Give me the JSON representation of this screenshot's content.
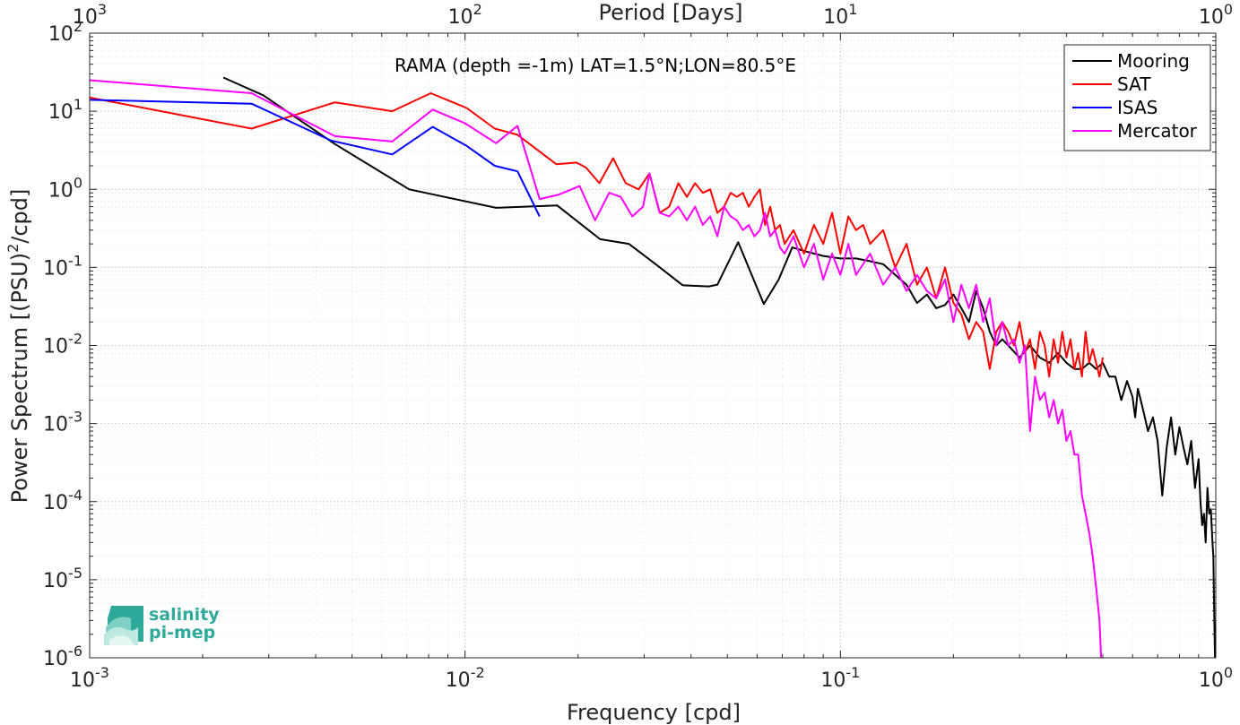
{
  "chart_data": {
    "type": "line",
    "title": "RAMA (depth =-1m) LAT=1.5°N;LON=80.5°E",
    "xlabel": "Frequency [cpd]",
    "ylabel": "Power Spectrum [(PSU)²/cpd]",
    "top_xlabel": "Period [Days]",
    "xscale": "log",
    "yscale": "log",
    "xlim": [
      0.001,
      1
    ],
    "ylim": [
      1e-06,
      100
    ],
    "grid": true,
    "legend_position": "top-right",
    "x_ticks": [
      {
        "value": 0.001,
        "base": "10",
        "exp": "-3"
      },
      {
        "value": 0.01,
        "base": "10",
        "exp": "-2"
      },
      {
        "value": 0.1,
        "base": "10",
        "exp": "-1"
      },
      {
        "value": 1,
        "base": "10",
        "exp": "0"
      }
    ],
    "top_ticks": [
      {
        "value": 0.001,
        "base": "10",
        "exp": "3"
      },
      {
        "value": 0.01,
        "base": "10",
        "exp": "2"
      },
      {
        "value": 0.1,
        "base": "10",
        "exp": "1"
      },
      {
        "value": 1,
        "base": "10",
        "exp": "0"
      }
    ],
    "y_ticks": [
      {
        "value": 100,
        "base": "10",
        "exp": "2"
      },
      {
        "value": 10,
        "base": "10",
        "exp": "1"
      },
      {
        "value": 1,
        "base": "10",
        "exp": "0"
      },
      {
        "value": 0.1,
        "base": "10",
        "exp": "-1"
      },
      {
        "value": 0.01,
        "base": "10",
        "exp": "-2"
      },
      {
        "value": 0.001,
        "base": "10",
        "exp": "-3"
      },
      {
        "value": 0.0001,
        "base": "10",
        "exp": "-4"
      },
      {
        "value": 1e-05,
        "base": "10",
        "exp": "-5"
      },
      {
        "value": 1e-06,
        "base": "10",
        "exp": "-6"
      }
    ],
    "series": [
      {
        "name": "Mooring",
        "color": "#000000",
        "points": [
          [
            0.00227,
            27
          ],
          [
            0.0029,
            16
          ],
          [
            0.0045,
            3.8
          ],
          [
            0.0071,
            1.0
          ],
          [
            0.0121,
            0.58
          ],
          [
            0.0176,
            0.62
          ],
          [
            0.0229,
            0.23
          ],
          [
            0.0273,
            0.2
          ],
          [
            0.0322,
            0.11
          ],
          [
            0.038,
            0.059
          ],
          [
            0.0446,
            0.057
          ],
          [
            0.047,
            0.06
          ],
          [
            0.0534,
            0.21
          ],
          [
            0.0587,
            0.07
          ],
          [
            0.0625,
            0.034
          ],
          [
            0.0685,
            0.07
          ],
          [
            0.0744,
            0.18
          ],
          [
            0.081,
            0.16
          ],
          [
            0.09,
            0.14
          ],
          [
            0.1,
            0.13
          ],
          [
            0.11,
            0.13
          ],
          [
            0.12,
            0.12
          ],
          [
            0.13,
            0.11
          ],
          [
            0.14,
            0.08
          ],
          [
            0.15,
            0.06
          ],
          [
            0.16,
            0.035
          ],
          [
            0.17,
            0.045
          ],
          [
            0.18,
            0.03
          ],
          [
            0.19,
            0.033
          ],
          [
            0.2,
            0.045
          ],
          [
            0.21,
            0.03
          ],
          [
            0.22,
            0.02
          ],
          [
            0.23,
            0.05
          ],
          [
            0.24,
            0.03
          ],
          [
            0.25,
            0.015
          ],
          [
            0.26,
            0.01
          ],
          [
            0.27,
            0.012
          ],
          [
            0.28,
            0.01
          ],
          [
            0.3,
            0.007
          ],
          [
            0.32,
            0.01
          ],
          [
            0.34,
            0.007
          ],
          [
            0.36,
            0.006
          ],
          [
            0.38,
            0.008
          ],
          [
            0.4,
            0.006
          ],
          [
            0.42,
            0.005
          ],
          [
            0.44,
            0.005
          ],
          [
            0.46,
            0.006
          ],
          [
            0.48,
            0.005
          ],
          [
            0.5,
            0.006
          ],
          [
            0.52,
            0.004
          ],
          [
            0.54,
            0.004
          ],
          [
            0.56,
            0.002
          ],
          [
            0.58,
            0.0035
          ],
          [
            0.6,
            0.0022
          ],
          [
            0.61,
            0.0012
          ],
          [
            0.62,
            0.0028
          ],
          [
            0.64,
            0.0015
          ],
          [
            0.66,
            0.0008
          ],
          [
            0.68,
            0.0012
          ],
          [
            0.7,
            0.0006
          ],
          [
            0.72,
            0.00012
          ],
          [
            0.74,
            0.0005
          ],
          [
            0.76,
            0.0012
          ],
          [
            0.78,
            0.0004
          ],
          [
            0.8,
            0.0009
          ],
          [
            0.82,
            0.0005
          ],
          [
            0.84,
            0.0003
          ],
          [
            0.86,
            0.0006
          ],
          [
            0.88,
            0.00015
          ],
          [
            0.9,
            0.00035
          ],
          [
            0.91,
            0.0001
          ],
          [
            0.92,
            5e-05
          ],
          [
            0.93,
            7e-05
          ],
          [
            0.94,
            3e-05
          ],
          [
            0.95,
            0.00015
          ],
          [
            0.96,
            7e-05
          ],
          [
            0.97,
            8e-05
          ],
          [
            0.98,
            3e-05
          ],
          [
            0.985,
            2e-05
          ],
          [
            0.99,
            4e-06
          ],
          [
            0.995,
            1e-06
          ]
        ]
      },
      {
        "name": "SAT",
        "color": "#ff0000",
        "points": [
          [
            0.001,
            15
          ],
          [
            0.0027,
            6
          ],
          [
            0.0045,
            13
          ],
          [
            0.0064,
            10
          ],
          [
            0.0081,
            17
          ],
          [
            0.0101,
            11
          ],
          [
            0.012,
            6
          ],
          [
            0.0138,
            5
          ],
          [
            0.0175,
            2.1
          ],
          [
            0.0198,
            2.2
          ],
          [
            0.021,
            1.9
          ],
          [
            0.0228,
            1.2
          ],
          [
            0.0248,
            2.5
          ],
          [
            0.0268,
            1.2
          ],
          [
            0.029,
            1.0
          ],
          [
            0.031,
            1.6
          ],
          [
            0.033,
            0.5
          ],
          [
            0.035,
            0.6
          ],
          [
            0.037,
            1.2
          ],
          [
            0.039,
            0.8
          ],
          [
            0.041,
            1.2
          ],
          [
            0.043,
            0.9
          ],
          [
            0.045,
            1.0
          ],
          [
            0.047,
            0.5
          ],
          [
            0.049,
            0.6
          ],
          [
            0.051,
            0.9
          ],
          [
            0.053,
            0.8
          ],
          [
            0.055,
            0.9
          ],
          [
            0.057,
            0.6
          ],
          [
            0.059,
            0.8
          ],
          [
            0.061,
            1.0
          ],
          [
            0.063,
            0.35
          ],
          [
            0.065,
            0.6
          ],
          [
            0.067,
            0.3
          ],
          [
            0.069,
            0.35
          ],
          [
            0.071,
            0.2
          ],
          [
            0.075,
            0.3
          ],
          [
            0.08,
            0.15
          ],
          [
            0.085,
            0.35
          ],
          [
            0.09,
            0.2
          ],
          [
            0.095,
            0.5
          ],
          [
            0.1,
            0.15
          ],
          [
            0.105,
            0.45
          ],
          [
            0.11,
            0.3
          ],
          [
            0.115,
            0.35
          ],
          [
            0.12,
            0.2
          ],
          [
            0.13,
            0.3
          ],
          [
            0.14,
            0.1
          ],
          [
            0.15,
            0.2
          ],
          [
            0.16,
            0.06
          ],
          [
            0.17,
            0.1
          ],
          [
            0.18,
            0.04
          ],
          [
            0.19,
            0.1
          ],
          [
            0.2,
            0.035
          ],
          [
            0.21,
            0.025
          ],
          [
            0.22,
            0.012
          ],
          [
            0.23,
            0.02
          ],
          [
            0.24,
            0.015
          ],
          [
            0.25,
            0.005
          ],
          [
            0.26,
            0.015
          ],
          [
            0.27,
            0.02
          ],
          [
            0.28,
            0.015
          ],
          [
            0.29,
            0.01
          ],
          [
            0.3,
            0.02
          ],
          [
            0.31,
            0.008
          ],
          [
            0.32,
            0.012
          ],
          [
            0.33,
            0.005
          ],
          [
            0.34,
            0.015
          ],
          [
            0.35,
            0.01
          ],
          [
            0.36,
            0.004
          ],
          [
            0.37,
            0.012
          ],
          [
            0.38,
            0.006
          ],
          [
            0.39,
            0.015
          ],
          [
            0.4,
            0.007
          ],
          [
            0.41,
            0.012
          ],
          [
            0.42,
            0.005
          ],
          [
            0.43,
            0.008
          ],
          [
            0.44,
            0.004
          ],
          [
            0.45,
            0.015
          ],
          [
            0.46,
            0.006
          ],
          [
            0.47,
            0.009
          ],
          [
            0.48,
            0.006
          ],
          [
            0.49,
            0.004
          ],
          [
            0.5,
            0.007
          ]
        ]
      },
      {
        "name": "ISAS",
        "color": "#0000ff",
        "points": [
          [
            0.001,
            14
          ],
          [
            0.0027,
            12.5
          ],
          [
            0.0044,
            4.2
          ],
          [
            0.0064,
            2.8
          ],
          [
            0.0082,
            6.3
          ],
          [
            0.0101,
            3.6
          ],
          [
            0.012,
            2.0
          ],
          [
            0.0138,
            1.7
          ],
          [
            0.0158,
            0.45
          ]
        ]
      },
      {
        "name": "Mercator",
        "color": "#ff00ff",
        "points": [
          [
            0.001,
            25
          ],
          [
            0.0027,
            17
          ],
          [
            0.0045,
            4.8
          ],
          [
            0.0064,
            4.1
          ],
          [
            0.0082,
            10.5
          ],
          [
            0.01,
            7.0
          ],
          [
            0.0121,
            3.9
          ],
          [
            0.0138,
            6.5
          ],
          [
            0.0158,
            0.75
          ],
          [
            0.0177,
            0.85
          ],
          [
            0.0202,
            1.1
          ],
          [
            0.0222,
            0.4
          ],
          [
            0.0242,
            0.9
          ],
          [
            0.026,
            0.8
          ],
          [
            0.0279,
            0.45
          ],
          [
            0.0298,
            0.6
          ],
          [
            0.031,
            1.6
          ],
          [
            0.033,
            0.5
          ],
          [
            0.035,
            0.45
          ],
          [
            0.037,
            0.6
          ],
          [
            0.039,
            0.4
          ],
          [
            0.041,
            0.6
          ],
          [
            0.043,
            0.35
          ],
          [
            0.045,
            0.45
          ],
          [
            0.047,
            0.25
          ],
          [
            0.049,
            0.6
          ],
          [
            0.051,
            0.45
          ],
          [
            0.053,
            0.4
          ],
          [
            0.055,
            0.3
          ],
          [
            0.057,
            0.35
          ],
          [
            0.059,
            0.25
          ],
          [
            0.061,
            0.3
          ],
          [
            0.063,
            0.5
          ],
          [
            0.065,
            0.25
          ],
          [
            0.067,
            0.3
          ],
          [
            0.069,
            0.18
          ],
          [
            0.071,
            0.15
          ],
          [
            0.075,
            0.25
          ],
          [
            0.08,
            0.1
          ],
          [
            0.085,
            0.2
          ],
          [
            0.09,
            0.07
          ],
          [
            0.095,
            0.15
          ],
          [
            0.1,
            0.08
          ],
          [
            0.105,
            0.2
          ],
          [
            0.11,
            0.08
          ],
          [
            0.12,
            0.15
          ],
          [
            0.13,
            0.06
          ],
          [
            0.14,
            0.1
          ],
          [
            0.15,
            0.05
          ],
          [
            0.16,
            0.08
          ],
          [
            0.17,
            0.05
          ],
          [
            0.18,
            0.04
          ],
          [
            0.19,
            0.07
          ],
          [
            0.2,
            0.02
          ],
          [
            0.21,
            0.06
          ],
          [
            0.22,
            0.03
          ],
          [
            0.23,
            0.06
          ],
          [
            0.24,
            0.02
          ],
          [
            0.25,
            0.04
          ],
          [
            0.26,
            0.01
          ],
          [
            0.27,
            0.02
          ],
          [
            0.28,
            0.01
          ],
          [
            0.29,
            0.012
          ],
          [
            0.3,
            0.006
          ],
          [
            0.31,
            0.01
          ],
          [
            0.32,
            0.0008
          ],
          [
            0.33,
            0.004
          ],
          [
            0.34,
            0.002
          ],
          [
            0.35,
            0.0025
          ],
          [
            0.36,
            0.0012
          ],
          [
            0.37,
            0.002
          ],
          [
            0.38,
            0.001
          ],
          [
            0.39,
            0.0015
          ],
          [
            0.4,
            0.0006
          ],
          [
            0.41,
            0.0008
          ],
          [
            0.42,
            0.0004
          ],
          [
            0.43,
            0.0004
          ],
          [
            0.44,
            0.00012
          ],
          [
            0.45,
            7e-05
          ],
          [
            0.46,
            4e-05
          ],
          [
            0.47,
            2e-05
          ],
          [
            0.48,
            8e-06
          ],
          [
            0.49,
            3e-06
          ],
          [
            0.495,
            1e-06
          ]
        ]
      }
    ]
  },
  "logo": {
    "line1": "salinity",
    "line2": "pi-mep"
  }
}
